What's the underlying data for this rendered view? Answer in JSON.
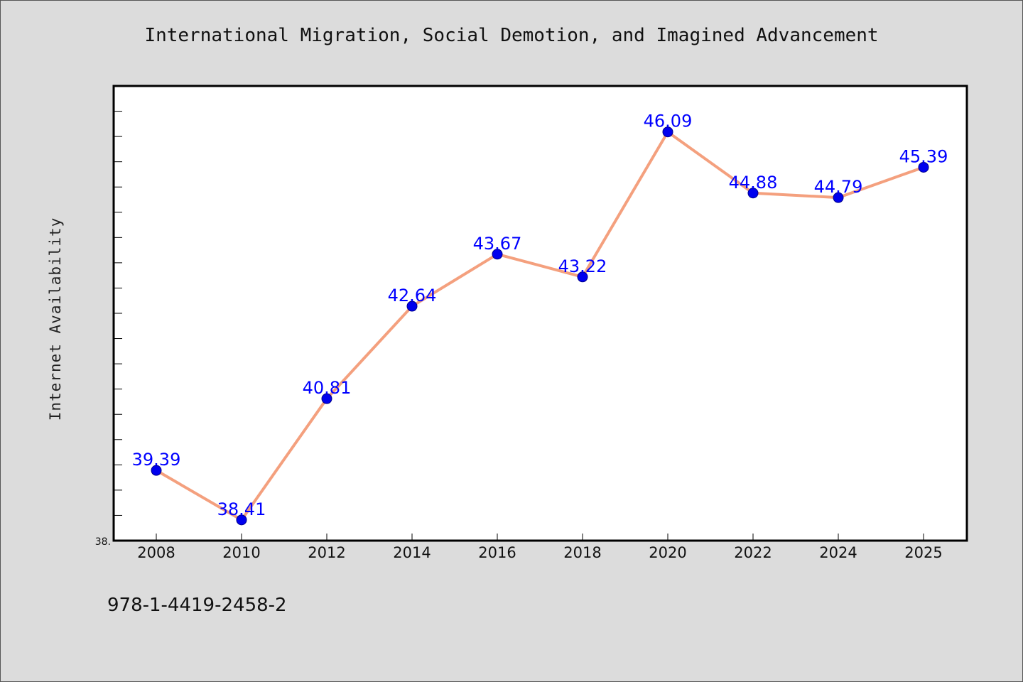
{
  "chart_data": {
    "type": "line",
    "title": "International Migration, Social Demotion, and Imagined Advancement",
    "xlabel": "",
    "ylabel": "Internet Availability",
    "categories": [
      "2008",
      "2010",
      "2012",
      "2014",
      "2016",
      "2018",
      "2020",
      "2022",
      "2024",
      "2025"
    ],
    "series": [
      {
        "values": [
          39.39,
          38.41,
          40.81,
          42.64,
          43.67,
          43.22,
          46.09,
          44.88,
          44.79,
          45.39
        ]
      }
    ],
    "data_labels": [
      "39.39",
      "38.41",
      "40.81",
      "42.64",
      "43.67",
      "43.22",
      "46.09",
      "44.88",
      "44.79",
      "45.39"
    ],
    "y_tick_label": "38.",
    "ylim": [
      38.0,
      47.0
    ],
    "grid": false,
    "colors": {
      "line": "#f4a07e",
      "marker": "#0000ee",
      "label": "#0000ff",
      "background": "#dcdcdc",
      "plot_background": "#ffffff"
    }
  },
  "footer": {
    "code": "978-1-4419-2458-2"
  }
}
